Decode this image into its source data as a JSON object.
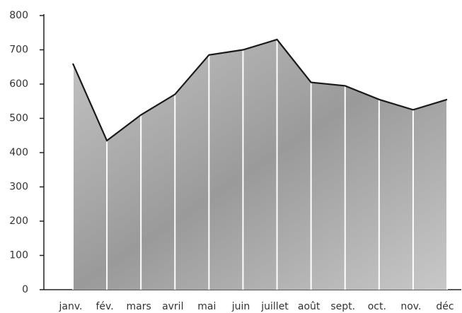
{
  "chart_data": {
    "type": "area",
    "categories": [
      "janv.",
      "fév.",
      "mars",
      "avril",
      "mai",
      "juin",
      "juillet",
      "août",
      "sept.",
      "oct.",
      "nov.",
      "déc"
    ],
    "values": [
      660,
      435,
      510,
      570,
      685,
      700,
      730,
      605,
      595,
      555,
      525,
      555
    ],
    "color": "#a9a9a9",
    "line_color": "#1a1a1a",
    "ylim": [
      0,
      800
    ],
    "yticks": [
      0,
      100,
      200,
      300,
      400,
      500,
      600,
      700,
      800
    ],
    "grid": false
  }
}
